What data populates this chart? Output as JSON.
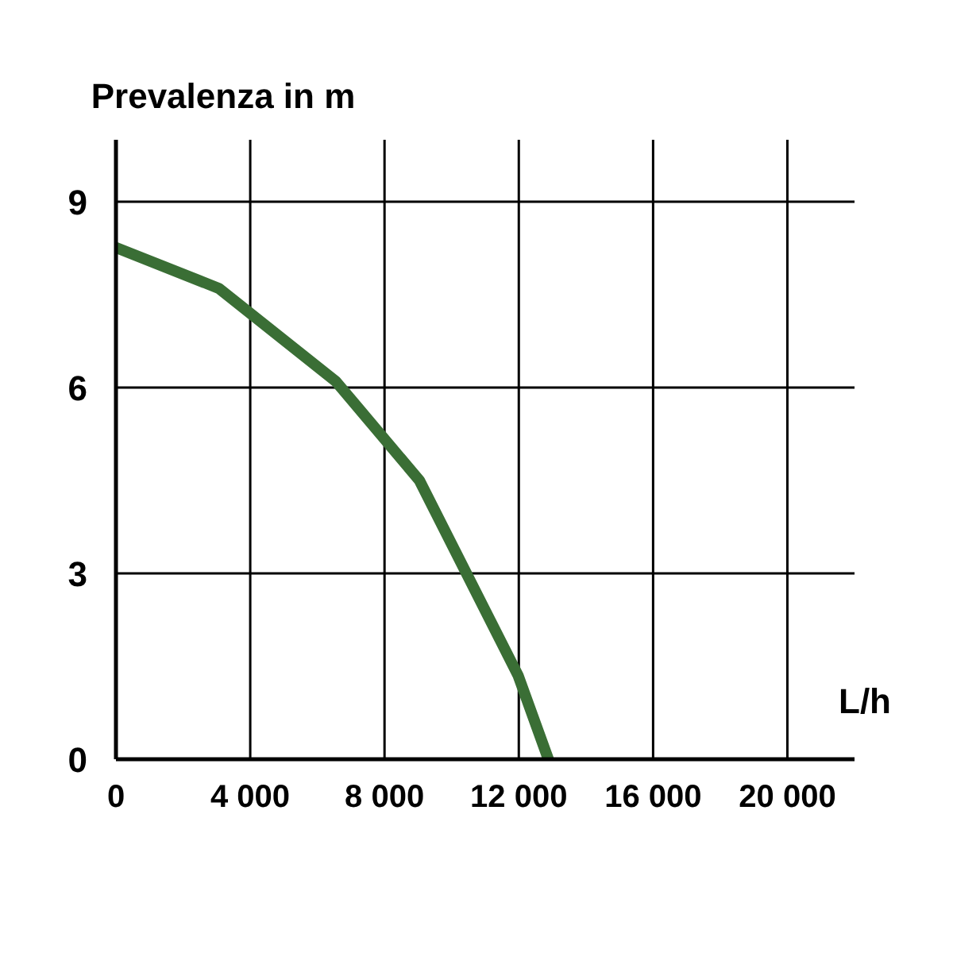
{
  "chart_data": {
    "type": "line",
    "ylabel": "Prevalenza in m",
    "xlabel": "L/h",
    "x": [
      0,
      3070,
      6550,
      9040,
      11980,
      12880
    ],
    "series": [
      {
        "color": "#3a6e35",
        "values": [
          8.26,
          7.6,
          6.1,
          4.5,
          1.35,
          0
        ]
      }
    ],
    "xlim": [
      0,
      22000
    ],
    "ylim": [
      0,
      10
    ],
    "xticks": [
      0,
      {
        "value": 4000,
        "label": "4 000"
      },
      {
        "value": 8000,
        "label": "8 000"
      },
      {
        "value": 12000,
        "label": "12 000"
      },
      {
        "value": 16000,
        "label": "16 000"
      },
      {
        "value": 20000,
        "label": "20 000"
      }
    ],
    "yticks": [
      0,
      3,
      6,
      9
    ],
    "grid": true,
    "marker": "none",
    "line_style": "solid"
  }
}
